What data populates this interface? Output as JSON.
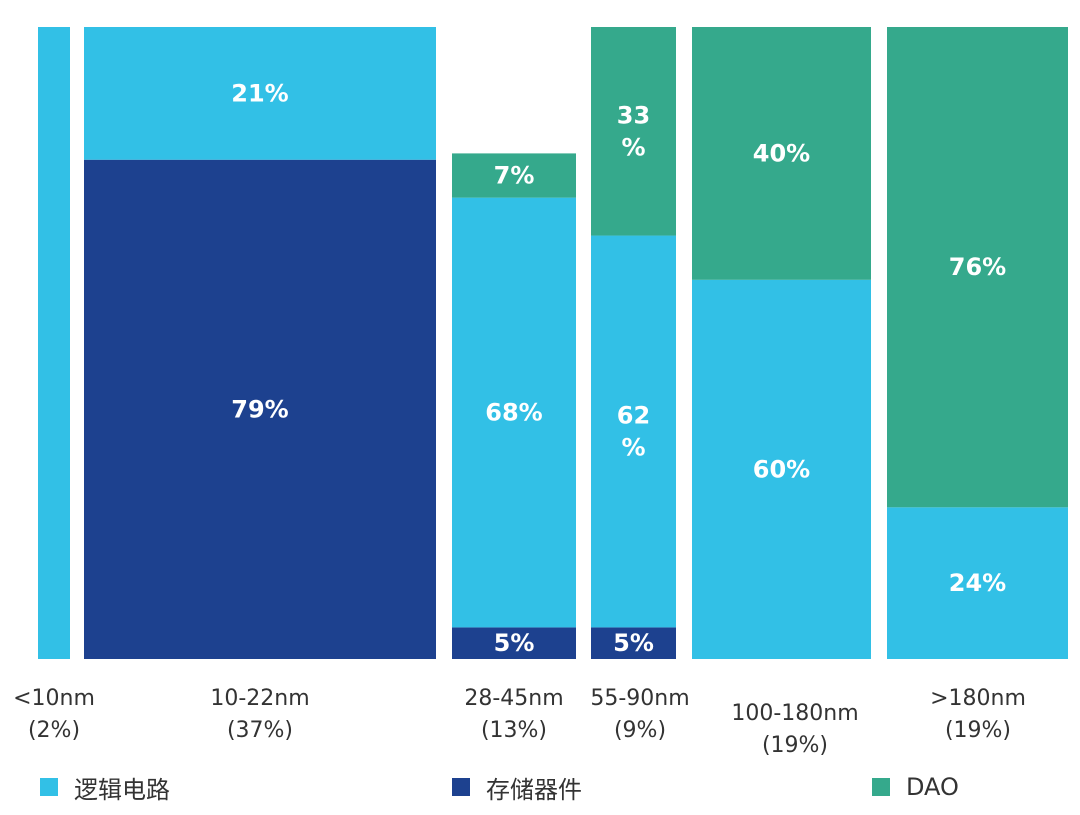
{
  "chart_data": {
    "type": "bar",
    "stacked": true,
    "variable_width": true,
    "categories": [
      "<10nm",
      "10-22nm",
      "28-45nm",
      "55-90nm",
      "100-180nm",
      ">180nm"
    ],
    "category_shares": [
      "(2%)",
      "(37%)",
      "(13%)",
      "(9%)",
      "(19%)",
      "(19%)"
    ],
    "column_widths_percent": [
      2,
      37,
      13,
      9,
      19,
      19
    ],
    "series": [
      {
        "name": "存储器件",
        "color": "#1d418f",
        "values": [
          0,
          79,
          5,
          5,
          0,
          0
        ],
        "labels": [
          "",
          "79%",
          "5%",
          "5%",
          "",
          ""
        ]
      },
      {
        "name": "逻辑电路",
        "color": "#32c0e6",
        "values": [
          100,
          21,
          68,
          62,
          60,
          24
        ],
        "labels": [
          "",
          "21%",
          "68%",
          "62\n%",
          "60%",
          "24%"
        ]
      },
      {
        "name": "DAO",
        "color": "#35a98c",
        "values": [
          0,
          0,
          7,
          33,
          40,
          76
        ],
        "labels": [
          "",
          "",
          "7%",
          "33\n%",
          "40%",
          "76%"
        ]
      }
    ],
    "ylim": [
      0,
      100
    ],
    "legend_position": "bottom",
    "grid": false
  },
  "legend": [
    {
      "label": "逻辑电路",
      "color": "#32c0e6"
    },
    {
      "label": "存储器件",
      "color": "#1d418f"
    },
    {
      "label": "DAO",
      "color": "#35a98c"
    }
  ]
}
